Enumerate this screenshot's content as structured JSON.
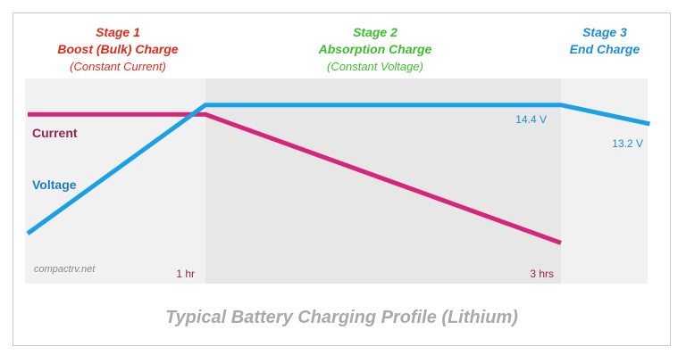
{
  "stages": [
    {
      "title": "Stage 1",
      "name": "Boost (Bulk) Charge",
      "detail": "(Constant Current)",
      "color": "#e02a1c"
    },
    {
      "title": "Stage 2",
      "name": "Absorption Charge",
      "detail": "(Constant Voltage)",
      "color": "#3cbf2c"
    },
    {
      "title": "Stage 3",
      "name": "End Charge",
      "detail": "",
      "color": "#1a8ed6"
    }
  ],
  "caption": "Typical Battery Charging Profile (Lithium)",
  "watermark": "compactrv.net",
  "chart_data": {
    "type": "line",
    "x_unit": "hours",
    "xlim": [
      0,
      4.0
    ],
    "ylim": [
      0,
      1
    ],
    "x_ticks": [
      {
        "x": 1,
        "label": "1 hr"
      },
      {
        "x": 3,
        "label": "3 hrs"
      }
    ],
    "shaded_region": {
      "x_start": 1,
      "x_end": 3,
      "color": "#e7e7e7"
    },
    "background_color": "#f1f1f1",
    "series": [
      {
        "name": "Current",
        "color": "#d6267a",
        "x": [
          0,
          1,
          3
        ],
        "y": [
          0.81,
          0.81,
          0.13
        ]
      },
      {
        "name": "Voltage",
        "color": "#1aa0e6",
        "x": [
          0,
          1,
          3,
          3.5
        ],
        "y": [
          0.18,
          0.86,
          0.86,
          0.76
        ]
      }
    ],
    "annotations": [
      {
        "text": "14.4 V",
        "x": 2.9,
        "y": 0.86,
        "color": "#1a8ed6"
      },
      {
        "text": "13.2 V",
        "x": 3.35,
        "y": 0.76,
        "color": "#1a8ed6"
      }
    ]
  }
}
